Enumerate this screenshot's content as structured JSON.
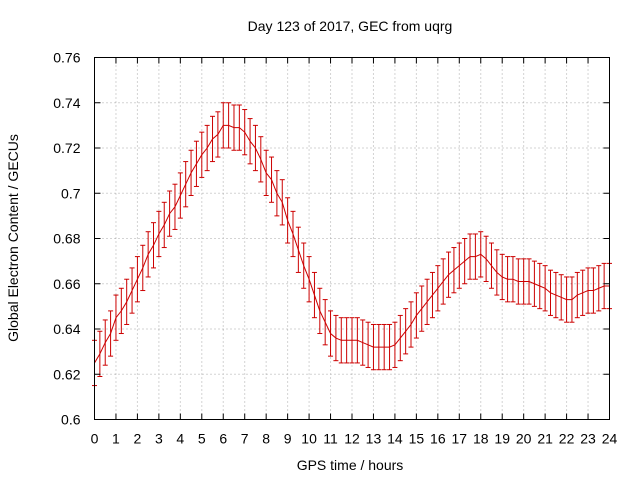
{
  "chart_data": {
    "type": "line",
    "title": "Day 123 of 2017, GEC from uqrg",
    "xlabel": "GPS time / hours",
    "ylabel": "Global Electron Content / GECUs",
    "xlim": [
      0,
      24
    ],
    "ylim": [
      0.6,
      0.76
    ],
    "xticks": [
      0,
      1,
      2,
      3,
      4,
      5,
      6,
      7,
      8,
      9,
      10,
      11,
      12,
      13,
      14,
      15,
      16,
      17,
      18,
      19,
      20,
      21,
      22,
      23,
      24
    ],
    "yticks": [
      0.6,
      0.62,
      0.64,
      0.66,
      0.68,
      0.7,
      0.72,
      0.74,
      0.76
    ],
    "ytick_labels": [
      "0.6",
      "0.62",
      "0.64",
      "0.66",
      "0.68",
      "0.7",
      "0.72",
      "0.74",
      "0.76"
    ],
    "grid": true,
    "color": "#cc0000",
    "series": [
      {
        "x": [
          0,
          0.25,
          0.5,
          0.75,
          1,
          1.25,
          1.5,
          1.75,
          2,
          2.25,
          2.5,
          2.75,
          3,
          3.25,
          3.5,
          3.75,
          4,
          4.25,
          4.5,
          4.75,
          5,
          5.25,
          5.5,
          5.75,
          6,
          6.25,
          6.5,
          6.75,
          7,
          7.25,
          7.5,
          7.75,
          8,
          8.25,
          8.5,
          8.75,
          9,
          9.25,
          9.5,
          9.75,
          10,
          10.25,
          10.5,
          10.75,
          11,
          11.25,
          11.5,
          11.75,
          12,
          12.25,
          12.5,
          12.75,
          13,
          13.25,
          13.5,
          13.75,
          14,
          14.25,
          14.5,
          14.75,
          15,
          15.25,
          15.5,
          15.75,
          16,
          16.25,
          16.5,
          16.75,
          17,
          17.25,
          17.5,
          17.75,
          18,
          18.25,
          18.5,
          18.75,
          19,
          19.25,
          19.5,
          19.75,
          20,
          20.25,
          20.5,
          20.75,
          21,
          21.25,
          21.5,
          21.75,
          22,
          22.25,
          22.5,
          22.75,
          23,
          23.25,
          23.5,
          23.75,
          24
        ],
        "y": [
          0.625,
          0.629,
          0.634,
          0.638,
          0.645,
          0.648,
          0.652,
          0.657,
          0.662,
          0.667,
          0.673,
          0.677,
          0.682,
          0.686,
          0.691,
          0.694,
          0.699,
          0.704,
          0.709,
          0.713,
          0.717,
          0.72,
          0.724,
          0.726,
          0.73,
          0.73,
          0.729,
          0.729,
          0.727,
          0.723,
          0.72,
          0.715,
          0.709,
          0.706,
          0.7,
          0.696,
          0.688,
          0.682,
          0.675,
          0.668,
          0.662,
          0.655,
          0.648,
          0.643,
          0.638,
          0.636,
          0.635,
          0.635,
          0.635,
          0.635,
          0.634,
          0.633,
          0.632,
          0.632,
          0.632,
          0.632,
          0.633,
          0.636,
          0.639,
          0.642,
          0.646,
          0.649,
          0.652,
          0.655,
          0.658,
          0.661,
          0.664,
          0.666,
          0.668,
          0.67,
          0.672,
          0.672,
          0.673,
          0.671,
          0.668,
          0.665,
          0.663,
          0.662,
          0.662,
          0.661,
          0.661,
          0.661,
          0.66,
          0.659,
          0.658,
          0.656,
          0.655,
          0.654,
          0.653,
          0.653,
          0.655,
          0.656,
          0.657,
          0.657,
          0.658,
          0.659,
          0.659
        ],
        "error": [
          0.01,
          0.01,
          0.01,
          0.01,
          0.01,
          0.01,
          0.01,
          0.01,
          0.01,
          0.01,
          0.01,
          0.01,
          0.01,
          0.01,
          0.01,
          0.01,
          0.01,
          0.01,
          0.01,
          0.01,
          0.01,
          0.01,
          0.01,
          0.01,
          0.01,
          0.01,
          0.01,
          0.01,
          0.01,
          0.01,
          0.01,
          0.01,
          0.01,
          0.01,
          0.01,
          0.01,
          0.01,
          0.01,
          0.01,
          0.01,
          0.01,
          0.01,
          0.01,
          0.01,
          0.01,
          0.01,
          0.01,
          0.01,
          0.01,
          0.01,
          0.01,
          0.01,
          0.01,
          0.01,
          0.01,
          0.01,
          0.01,
          0.01,
          0.01,
          0.01,
          0.01,
          0.01,
          0.01,
          0.01,
          0.01,
          0.01,
          0.01,
          0.01,
          0.01,
          0.01,
          0.01,
          0.01,
          0.01,
          0.01,
          0.01,
          0.01,
          0.01,
          0.01,
          0.01,
          0.01,
          0.01,
          0.01,
          0.01,
          0.01,
          0.01,
          0.01,
          0.01,
          0.01,
          0.01,
          0.01,
          0.01,
          0.01,
          0.01,
          0.01,
          0.01,
          0.01,
          0.01
        ]
      }
    ]
  }
}
